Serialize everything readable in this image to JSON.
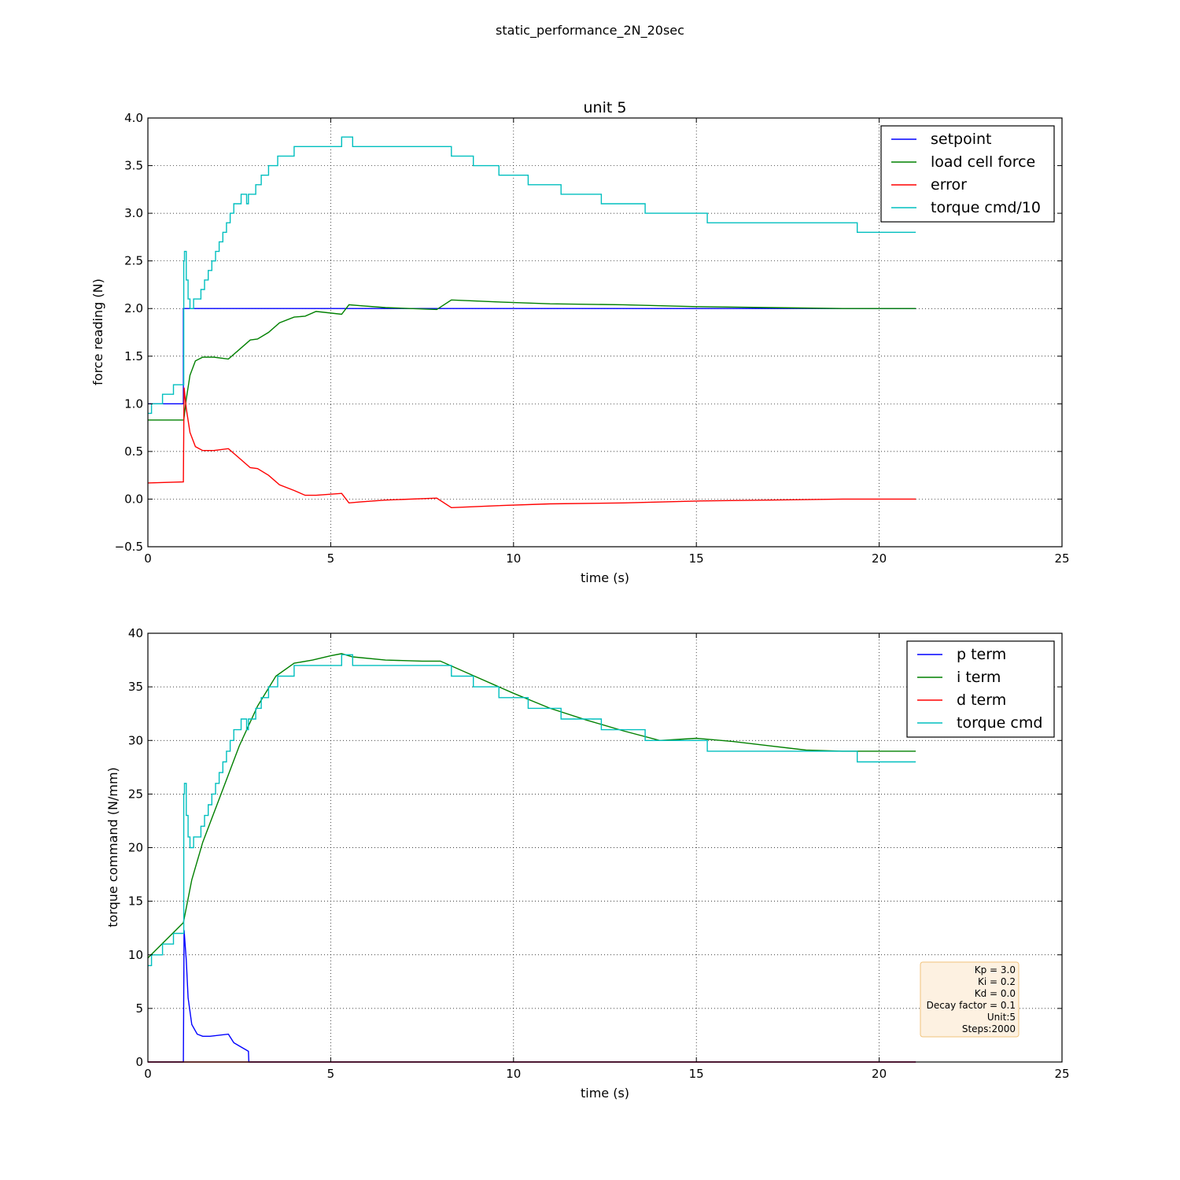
{
  "suptitle": "static_performance_2N_20sec",
  "chart_data": [
    {
      "type": "line",
      "title": "unit 5",
      "xlabel": "time (s)",
      "ylabel": "force reading (N)",
      "xlim": [
        0,
        25
      ],
      "ylim": [
        -0.5,
        4.0
      ],
      "xticks": [
        "0",
        "5",
        "10",
        "15",
        "20",
        "25"
      ],
      "yticks": [
        "−0.5",
        "0.0",
        "0.5",
        "1.0",
        "1.5",
        "2.0",
        "2.5",
        "3.0",
        "3.5",
        "4.0"
      ],
      "grid": true,
      "legend_position": "top-right",
      "series": [
        {
          "name": "setpoint",
          "color": "#0000ff",
          "step": false,
          "x": [
            0,
            0.97,
            0.97,
            21
          ],
          "y": [
            1.0,
            1.0,
            2.0,
            2.0
          ]
        },
        {
          "name": "load cell force",
          "color": "#008000",
          "step": false,
          "x": [
            0,
            0.98,
            1.05,
            1.15,
            1.3,
            1.5,
            1.8,
            2.2,
            2.5,
            2.8,
            3.0,
            3.3,
            3.6,
            4.0,
            4.3,
            4.6,
            5.3,
            5.5,
            5.8,
            6.5,
            7.9,
            8.3,
            9.5,
            11,
            13,
            15,
            17,
            19,
            21
          ],
          "y": [
            0.83,
            0.83,
            1.05,
            1.3,
            1.45,
            1.49,
            1.49,
            1.47,
            1.57,
            1.67,
            1.68,
            1.75,
            1.85,
            1.91,
            1.92,
            1.97,
            1.94,
            2.04,
            2.03,
            2.01,
            1.99,
            2.09,
            2.07,
            2.05,
            2.04,
            2.02,
            2.01,
            2.0,
            2.0
          ]
        },
        {
          "name": "error",
          "color": "#ff0000",
          "step": false,
          "x": [
            0,
            0.97,
            0.99,
            1.05,
            1.15,
            1.3,
            1.5,
            1.8,
            2.2,
            2.5,
            2.8,
            3.0,
            3.3,
            3.6,
            4.0,
            4.3,
            4.6,
            5.3,
            5.5,
            5.8,
            6.5,
            7.9,
            8.3,
            9.5,
            11,
            13,
            15,
            17,
            19,
            21
          ],
          "y": [
            0.17,
            0.18,
            1.17,
            0.95,
            0.7,
            0.55,
            0.51,
            0.51,
            0.53,
            0.43,
            0.33,
            0.32,
            0.25,
            0.15,
            0.09,
            0.04,
            0.04,
            0.06,
            -0.04,
            -0.03,
            -0.01,
            0.01,
            -0.09,
            -0.07,
            -0.05,
            -0.04,
            -0.02,
            -0.01,
            0.0,
            0.0
          ]
        },
        {
          "name": "torque cmd/10",
          "color": "#00bfbf",
          "step": true,
          "x": [
            0,
            0.1,
            0.4,
            0.7,
            0.98,
            1.0,
            1.05,
            1.1,
            1.15,
            1.25,
            1.45,
            1.55,
            1.65,
            1.75,
            1.85,
            1.95,
            2.05,
            2.15,
            2.25,
            2.35,
            2.55,
            2.7,
            2.75,
            2.8,
            2.95,
            3.1,
            3.3,
            3.55,
            4.0,
            5.3,
            5.6,
            8.3,
            8.9,
            9.6,
            10.4,
            11.3,
            12.4,
            13.6,
            15.3,
            19.4,
            21
          ],
          "y": [
            0.9,
            1.0,
            1.1,
            1.2,
            2.5,
            2.6,
            2.3,
            2.1,
            2.0,
            2.1,
            2.2,
            2.3,
            2.4,
            2.5,
            2.6,
            2.7,
            2.8,
            2.9,
            3.0,
            3.1,
            3.2,
            3.1,
            3.2,
            3.2,
            3.3,
            3.4,
            3.5,
            3.6,
            3.7,
            3.8,
            3.7,
            3.6,
            3.5,
            3.4,
            3.3,
            3.2,
            3.1,
            3.0,
            2.9,
            2.8,
            2.8
          ]
        }
      ]
    },
    {
      "type": "line",
      "title": "",
      "xlabel": "time (s)",
      "ylabel": "torque command (N/mm)",
      "xlim": [
        0,
        25
      ],
      "ylim": [
        0,
        40
      ],
      "xticks": [
        "0",
        "5",
        "10",
        "15",
        "20",
        "25"
      ],
      "yticks": [
        "0",
        "5",
        "10",
        "15",
        "20",
        "25",
        "30",
        "35",
        "40"
      ],
      "grid": true,
      "legend_position": "top-right",
      "annotation": [
        "Kp = 3.0",
        "Ki = 0.2",
        "Kd = 0.0",
        "Decay factor = 0.1",
        "Unit:5",
        "Steps:2000"
      ],
      "annotation_position": "bottom-right",
      "annotation_bg": "#fdf1e1",
      "annotation_border": "#f0c27a",
      "series": [
        {
          "name": "p term",
          "color": "#0000ff",
          "step": false,
          "x": [
            0,
            0.97,
            0.99,
            1.05,
            1.1,
            1.2,
            1.35,
            1.5,
            1.7,
            2.2,
            2.35,
            2.5,
            2.7,
            2.75,
            2.76,
            21
          ],
          "y": [
            0,
            0,
            12.3,
            9.5,
            6.0,
            3.5,
            2.6,
            2.4,
            2.4,
            2.6,
            1.8,
            1.5,
            1.1,
            1.0,
            0,
            0
          ]
        },
        {
          "name": "i term",
          "color": "#008000",
          "step": false,
          "x": [
            0,
            0.97,
            1.2,
            1.5,
            2.0,
            2.5,
            3.0,
            3.5,
            4.0,
            4.5,
            5.0,
            5.3,
            5.6,
            6.5,
            7.5,
            8.0,
            9.0,
            10.0,
            11.0,
            12.0,
            13.0,
            14.0,
            15.0,
            16.0,
            17.0,
            18.0,
            19.0,
            20.0,
            21.0
          ],
          "y": [
            9.7,
            13.0,
            17.0,
            20.5,
            25.0,
            29.5,
            33.2,
            36.0,
            37.2,
            37.5,
            37.9,
            38.1,
            37.8,
            37.5,
            37.4,
            37.4,
            35.9,
            34.4,
            33.0,
            31.9,
            30.9,
            30.0,
            30.2,
            29.9,
            29.5,
            29.1,
            29.0,
            29.0,
            29.0
          ]
        },
        {
          "name": "d term",
          "color": "#ff0000",
          "step": false,
          "x": [
            0,
            21
          ],
          "y": [
            0,
            0
          ]
        },
        {
          "name": "torque cmd",
          "color": "#00bfbf",
          "step": true,
          "x": [
            0,
            0.1,
            0.4,
            0.7,
            0.98,
            1.0,
            1.05,
            1.1,
            1.15,
            1.25,
            1.45,
            1.55,
            1.65,
            1.75,
            1.85,
            1.95,
            2.05,
            2.15,
            2.25,
            2.35,
            2.55,
            2.7,
            2.75,
            2.8,
            2.95,
            3.1,
            3.3,
            3.55,
            4.0,
            5.3,
            5.6,
            8.3,
            8.9,
            9.6,
            10.4,
            11.3,
            12.4,
            13.6,
            15.3,
            19.4,
            21
          ],
          "y": [
            9,
            10,
            11,
            12,
            25,
            26,
            23,
            21,
            20,
            21,
            22,
            23,
            24,
            25,
            26,
            27,
            28,
            29,
            30,
            31,
            32,
            31,
            32,
            32,
            33,
            34,
            35,
            36,
            37,
            38,
            37,
            36,
            35,
            34,
            33,
            32,
            31,
            30,
            29,
            28,
            28
          ]
        }
      ]
    }
  ]
}
